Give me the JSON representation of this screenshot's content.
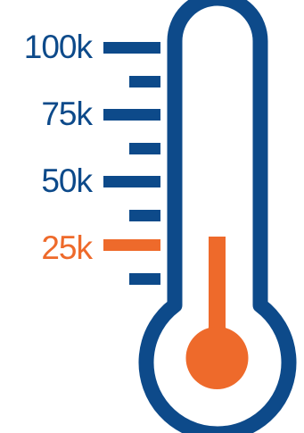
{
  "colors": {
    "primary": "#0d4a8a",
    "accent": "#ee6a2b"
  },
  "scale": {
    "min": 0,
    "max": 100000,
    "labels": [
      {
        "text": "100k",
        "value": 100000,
        "color": "primary"
      },
      {
        "text": "75k",
        "value": 75000,
        "color": "primary"
      },
      {
        "text": "50k",
        "value": 50000,
        "color": "primary"
      },
      {
        "text": "25k",
        "value": 25000,
        "color": "accent"
      }
    ]
  },
  "fill": {
    "value": 25000
  }
}
